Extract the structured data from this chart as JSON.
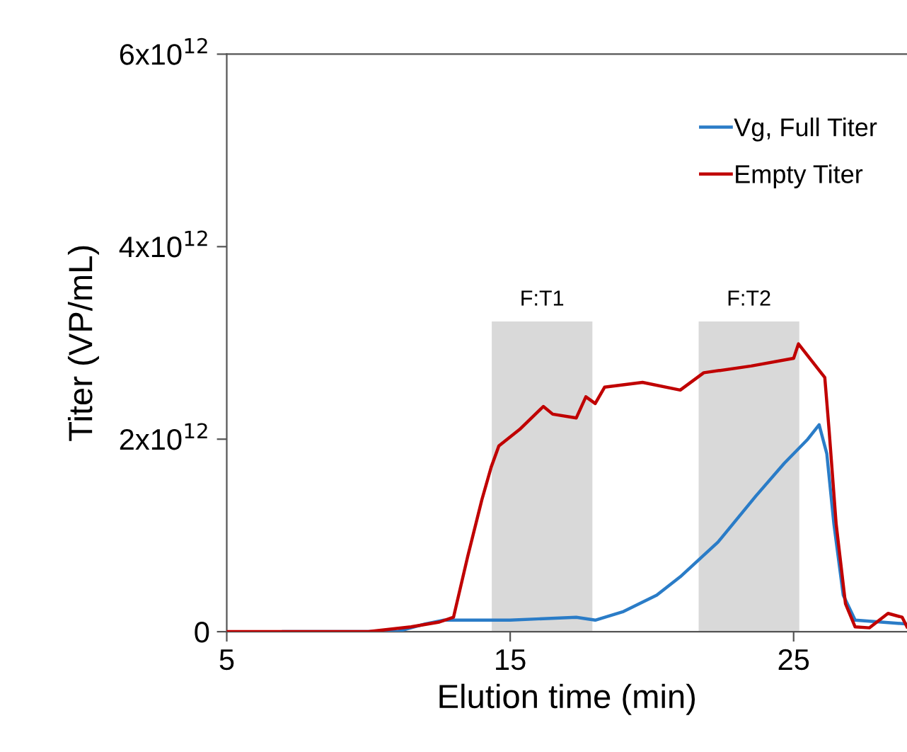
{
  "chart_data": {
    "type": "line",
    "xlabel": "Elution time (min)",
    "ylabel": "Titer (VP/mL)",
    "xlim": [
      5,
      29
    ],
    "xticks": [
      5,
      15,
      25
    ],
    "ylim": [
      0,
      6000000000000.0
    ],
    "yticks": [
      {
        "value": 0,
        "label": "0"
      },
      {
        "value": 2000000000000.0,
        "label": "2x10$^{12}$"
      },
      {
        "value": 4000000000000.0,
        "label": "4x10$^{12}$"
      },
      {
        "value": 6000000000000.0,
        "label": "6x10$^{12}$"
      }
    ],
    "legend": "top right",
    "grid": false,
    "marker": "none",
    "line_style": "solid",
    "bands": [
      {
        "axis": "x",
        "from": 14.35,
        "to": 17.9,
        "label": "F:T1",
        "color": "#d9d9d9"
      },
      {
        "axis": "x",
        "from": 21.65,
        "to": 25.2,
        "label": "F:T2",
        "color": "#d9d9d9"
      }
    ],
    "series": [
      {
        "name": "Vg, Full Titer",
        "color": "#2a7cc7",
        "x": [
          7,
          11,
          12,
          12.67,
          15,
          17.33,
          18,
          19,
          20.17,
          21,
          22.33,
          23.67,
          24.67,
          25.5,
          25.9,
          26.17,
          26.42,
          26.75,
          27.17,
          29
        ],
        "values": [
          0,
          0,
          80000000000.0,
          120000000000.0,
          120000000000.0,
          150000000000.0,
          120000000000.0,
          210000000000.0,
          380000000000.0,
          570000000000.0,
          930000000000.0,
          1410000000000.0,
          1750000000000.0,
          2000000000000.0,
          2150000000000.0,
          1850000000000.0,
          1120000000000.0,
          380000000000.0,
          120000000000.0,
          80000000000.0
        ]
      },
      {
        "name": "Empty Titer",
        "color": "#c00000",
        "x": [
          5,
          10,
          11.5,
          12.5,
          13,
          13.5,
          14,
          14.33,
          14.6,
          15.33,
          16.17,
          16.5,
          17.33,
          17.67,
          18,
          18.33,
          19.67,
          21,
          21.83,
          23.5,
          25,
          25.17,
          26.1,
          26.25,
          26.5,
          26.83,
          27.17,
          27.67,
          28.33,
          28.83,
          29
        ],
        "values": [
          0,
          0,
          50000000000.0,
          100000000000.0,
          150000000000.0,
          780000000000.0,
          1370000000000.0,
          1710000000000.0,
          1930000000000.0,
          2100000000000.0,
          2340000000000.0,
          2260000000000.0,
          2220000000000.0,
          2440000000000.0,
          2370000000000.0,
          2540000000000.0,
          2590000000000.0,
          2510000000000.0,
          2690000000000.0,
          2760000000000.0,
          2840000000000.0,
          2990000000000.0,
          2640000000000.0,
          2100000000000.0,
          1120000000000.0,
          290000000000.0,
          50000000000.0,
          40000000000.0,
          190000000000.0,
          150000000000.0,
          50000000000.0
        ]
      }
    ]
  }
}
